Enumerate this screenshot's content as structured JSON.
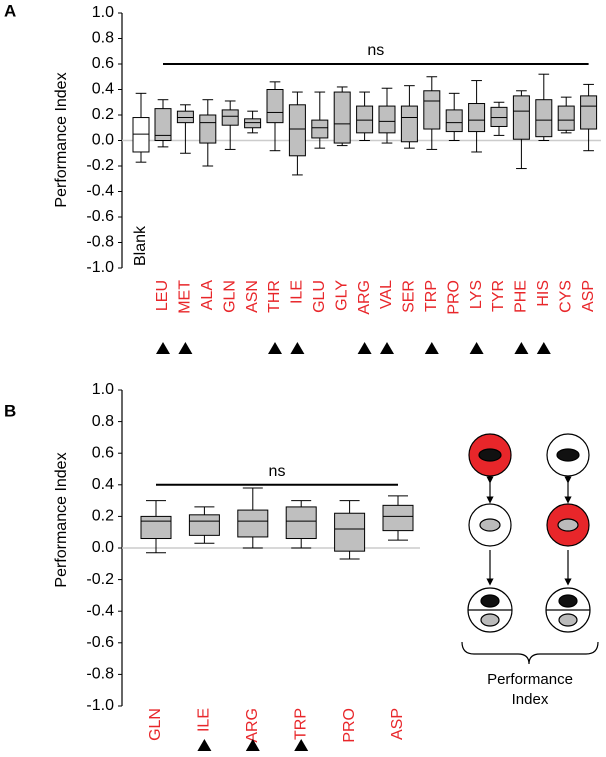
{
  "chart_data": [
    {
      "type": "box",
      "panel_label": "A",
      "y_label": "Performance Index",
      "ylim": [
        -1,
        1
      ],
      "yticks": [
        {
          "value": 1,
          "label": "1.0"
        },
        0.8,
        0.6,
        0.4,
        0.2,
        {
          "value": 0,
          "label": "0.0"
        },
        -0.2,
        -0.4,
        -0.6,
        -0.8,
        {
          "value": -1,
          "label": "-1.0"
        }
      ],
      "zero_line": true,
      "reference": {
        "name": "Blank",
        "color": "#ffffff",
        "whisker_low": -0.17,
        "q1": -0.09,
        "median": 0.05,
        "q3": 0.18,
        "whisker_high": 0.37
      },
      "categories": [
        "LEU",
        "MET",
        "ALA",
        "GLN",
        "ASN",
        "THR",
        "ILE",
        "GLU",
        "GLY",
        "ARG",
        "VAL",
        "SER",
        "TRP",
        "PRO",
        "LYS",
        "TYR",
        "PHE",
        "HIS",
        "CYS",
        "ASP"
      ],
      "label_color": "#e8262a",
      "color": "#bfbfbf",
      "whisker_low": [
        -0.05,
        -0.1,
        -0.2,
        -0.07,
        0.06,
        -0.08,
        -0.27,
        -0.06,
        -0.04,
        0.0,
        -0.02,
        -0.06,
        -0.07,
        0.0,
        -0.09,
        0.04,
        -0.22,
        0.0,
        0.06,
        -0.08
      ],
      "q1": [
        0.0,
        0.14,
        -0.02,
        0.12,
        0.1,
        0.14,
        -0.12,
        0.02,
        -0.02,
        0.06,
        0.06,
        -0.01,
        0.09,
        0.07,
        0.07,
        0.11,
        0.01,
        0.03,
        0.08,
        0.09
      ],
      "median": [
        0.04,
        0.18,
        0.14,
        0.19,
        0.14,
        0.22,
        0.09,
        0.1,
        0.13,
        0.16,
        0.15,
        0.18,
        0.31,
        0.14,
        0.16,
        0.18,
        0.23,
        0.16,
        0.16,
        0.27
      ],
      "q3": [
        0.25,
        0.23,
        0.2,
        0.24,
        0.17,
        0.4,
        0.28,
        0.16,
        0.38,
        0.27,
        0.27,
        0.27,
        0.39,
        0.24,
        0.29,
        0.26,
        0.35,
        0.32,
        0.27,
        0.35
      ],
      "whisker_high": [
        0.32,
        0.28,
        0.32,
        0.31,
        0.23,
        0.46,
        0.38,
        0.38,
        0.42,
        0.38,
        0.41,
        0.43,
        0.5,
        0.37,
        0.47,
        0.3,
        0.39,
        0.52,
        0.34,
        0.44
      ],
      "marked": [
        true,
        true,
        false,
        false,
        false,
        true,
        true,
        false,
        false,
        true,
        true,
        false,
        true,
        false,
        true,
        false,
        true,
        true,
        false,
        false
      ],
      "annotation": {
        "text": "ns",
        "y": 0.6
      }
    },
    {
      "type": "box",
      "panel_label": "B",
      "y_label": "Performance Index",
      "ylim": [
        -1,
        1
      ],
      "yticks": [
        {
          "value": 1,
          "label": "1.0"
        },
        0.8,
        0.6,
        0.4,
        0.2,
        {
          "value": 0,
          "label": "0.0"
        },
        -0.2,
        -0.4,
        -0.6,
        -0.8,
        {
          "value": -1,
          "label": "-1.0"
        }
      ],
      "zero_line": true,
      "categories": [
        "GLN",
        "ILE",
        "ARG",
        "TRP",
        "PRO",
        "ASP"
      ],
      "label_color": "#e8262a",
      "color": "#bfbfbf",
      "whisker_low": [
        -0.03,
        0.03,
        0.0,
        0.0,
        -0.07,
        0.05
      ],
      "q1": [
        0.06,
        0.08,
        0.07,
        0.06,
        -0.02,
        0.11
      ],
      "median": [
        0.17,
        0.17,
        0.17,
        0.17,
        0.12,
        0.2
      ],
      "q3": [
        0.2,
        0.21,
        0.24,
        0.26,
        0.22,
        0.27
      ],
      "whisker_high": [
        0.3,
        0.26,
        0.38,
        0.3,
        0.3,
        0.33
      ],
      "marked": [
        false,
        true,
        true,
        true,
        false,
        false
      ],
      "annotation": {
        "text": "ns",
        "y": 0.4
      }
    }
  ],
  "diagram": {
    "caption": "Performance Index"
  }
}
